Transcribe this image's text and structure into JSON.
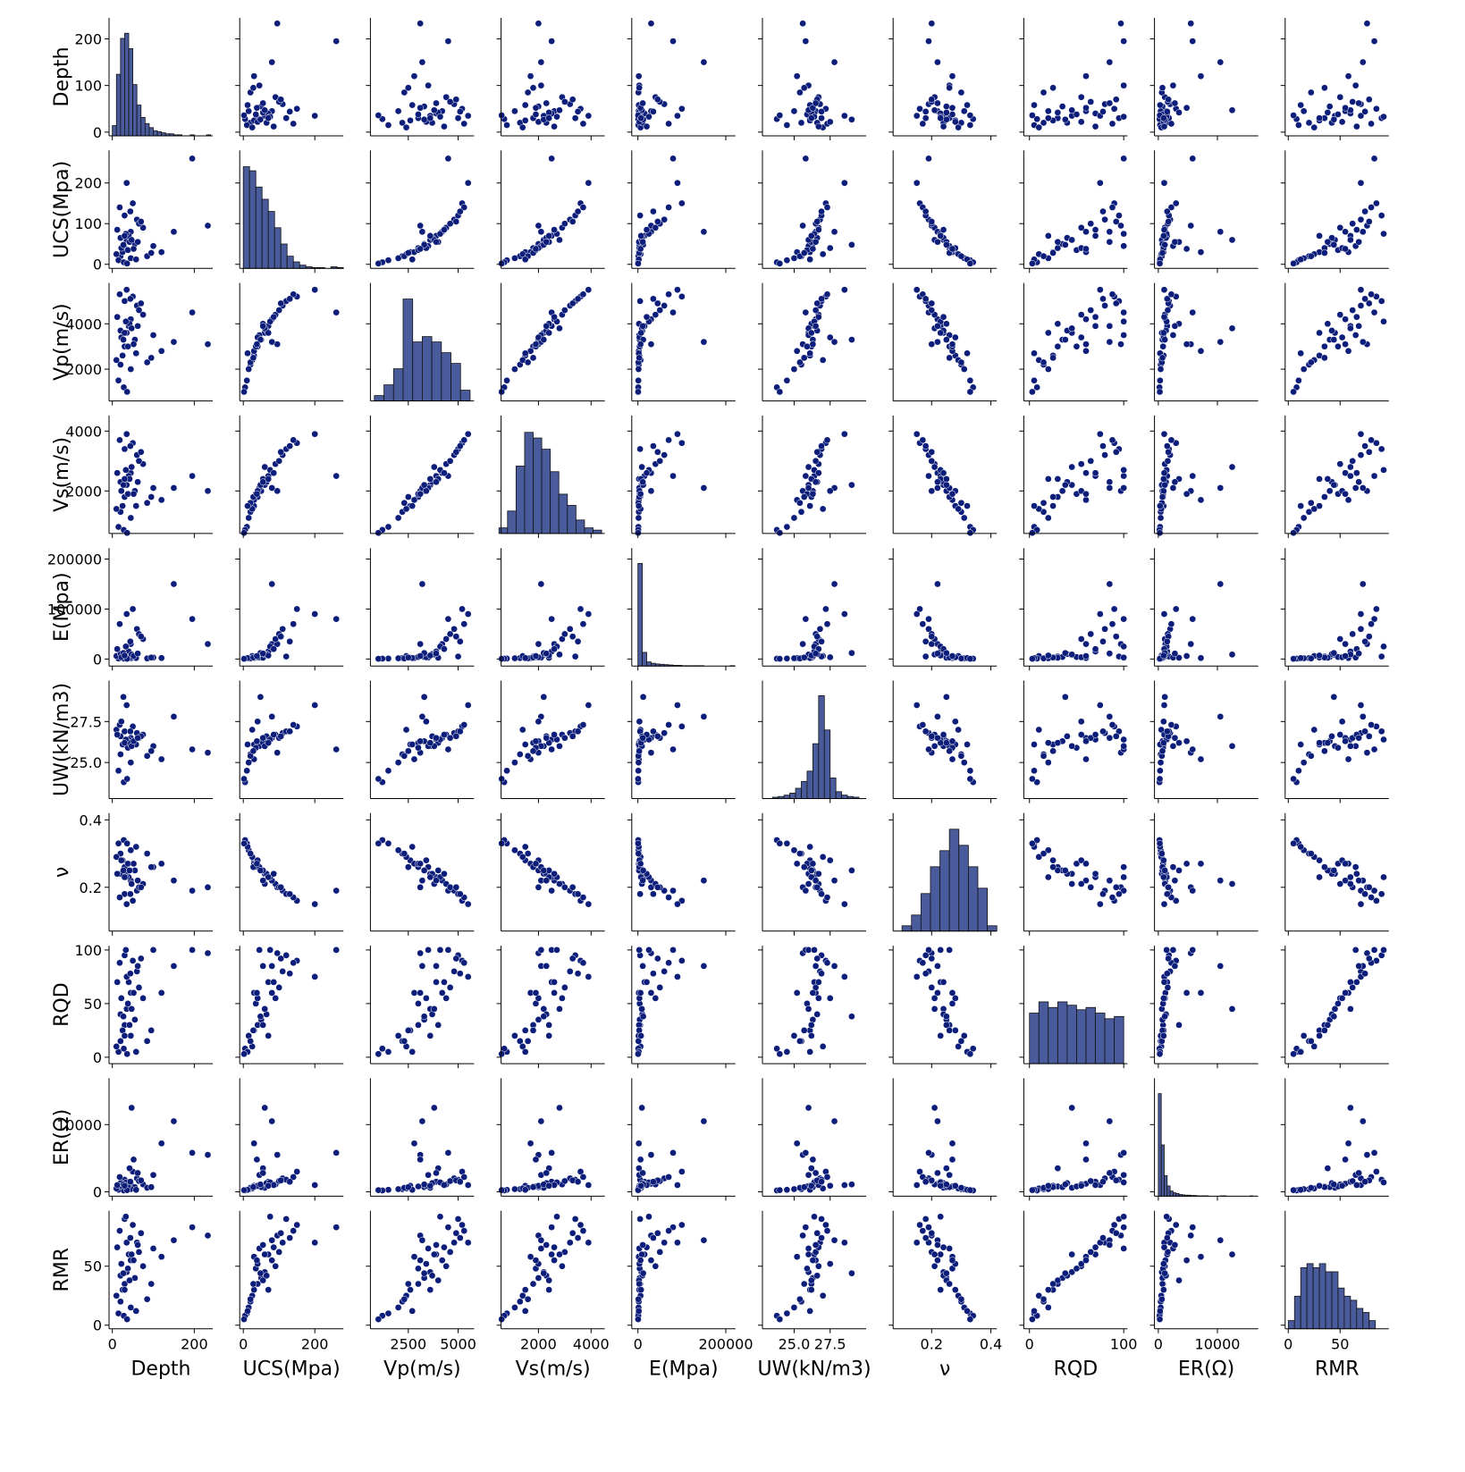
{
  "chart_data": {
    "type": "pairplot",
    "color": "#0d1d7a",
    "hist_color": "#4a5b9c",
    "variables": [
      {
        "name": "Depth",
        "lim": [
          -8,
          245
        ],
        "xticks": [
          0,
          200
        ],
        "yticks": [
          0,
          100,
          200
        ],
        "hist": {
          "bins": [
            0,
            10,
            20,
            30,
            40,
            50,
            60,
            70,
            80,
            90,
            100,
            110,
            120,
            130,
            140,
            150,
            160,
            170,
            180,
            190,
            200,
            210,
            220,
            230,
            240
          ],
          "counts": [
            10,
            60,
            95,
            100,
            85,
            50,
            30,
            18,
            12,
            8,
            5,
            4,
            3,
            2,
            2,
            1,
            1,
            0,
            0,
            1,
            0,
            0,
            0,
            1
          ],
          "ylim": [
            0,
            115
          ]
        }
      },
      {
        "name": "UCS(Mpa)",
        "lim": [
          -10,
          280
        ],
        "xticks": [
          0,
          200
        ],
        "yticks": [
          0,
          100,
          200
        ],
        "hist": {
          "bins": [
            0,
            17.5,
            35,
            52.5,
            70,
            87.5,
            105,
            122.5,
            140,
            157.5,
            175,
            192.5,
            210,
            227.5,
            245,
            262.5,
            280
          ],
          "counts": [
            125,
            120,
            100,
            85,
            70,
            50,
            30,
            15,
            8,
            4,
            2,
            1,
            1,
            0,
            2,
            1
          ],
          "ylim": [
            0,
            145
          ]
        }
      },
      {
        "name": "Vp(m/s)",
        "lim": [
          600,
          5800
        ],
        "xticks": [
          2500,
          5000
        ],
        "yticks": [
          2000,
          4000
        ],
        "hist": {
          "bins": [
            800,
            1280,
            1760,
            2240,
            2720,
            3200,
            3680,
            4160,
            4640,
            5120,
            5600
          ],
          "counts": [
            5,
            15,
            30,
            95,
            55,
            60,
            55,
            45,
            35,
            10
          ],
          "ylim": [
            0,
            110
          ]
        }
      },
      {
        "name": "Vs(m/s)",
        "lim": [
          580,
          4520
        ],
        "xticks": [
          2000,
          4000
        ],
        "yticks": [
          2000,
          4000
        ],
        "hist": {
          "bins": [
            500,
            825,
            1150,
            1475,
            1800,
            2125,
            2450,
            2775,
            3100,
            3425,
            3750,
            4075,
            4400
          ],
          "counts": [
            5,
            20,
            60,
            90,
            85,
            75,
            55,
            35,
            25,
            12,
            5,
            3
          ],
          "ylim": [
            0,
            105
          ]
        }
      },
      {
        "name": "E(Mpa)",
        "lim": [
          -14000,
          222000
        ],
        "xticks": [
          0,
          200000
        ],
        "yticks": [
          0,
          100000,
          200000
        ],
        "hist": {
          "bins": [
            0,
            10000,
            20000,
            30000,
            40000,
            50000,
            60000,
            70000,
            80000,
            90000,
            100000,
            110000,
            120000,
            130000,
            140000,
            150000,
            160000,
            170000,
            180000,
            190000,
            200000,
            210000,
            220000
          ],
          "counts": [
            300,
            40,
            12,
            8,
            6,
            5,
            4,
            3,
            2,
            2,
            1,
            1,
            1,
            1,
            1,
            0,
            0,
            0,
            0,
            0,
            0,
            1
          ],
          "ylim": [
            0,
            345
          ]
        }
      },
      {
        "name": "UW(kN/m3)",
        "lim": [
          22.8,
          30
        ],
        "xticks": [
          {
            "value": 25,
            "label": "25.0"
          },
          27.5
        ],
        "yticks": [
          {
            "value": 25,
            "label": "25.0"
          },
          27.5
        ],
        "hist": {
          "bins": [
            23.5,
            23.9,
            24.3,
            24.7,
            25.1,
            25.5,
            25.9,
            26.3,
            26.7,
            27.1,
            27.5,
            27.9,
            28.3,
            28.7,
            29.1,
            29.5
          ],
          "counts": [
            2,
            3,
            5,
            8,
            15,
            25,
            40,
            80,
            150,
            100,
            30,
            10,
            5,
            3,
            2
          ],
          "ylim": [
            0,
            172
          ]
        }
      },
      {
        "name": "ν",
        "lim": [
          0.07,
          0.42
        ],
        "xticks": [
          0.2,
          0.4
        ],
        "yticks": [
          0.2,
          0.4
        ],
        "hist": {
          "bins": [
            0.1,
            0.132,
            0.164,
            0.196,
            0.228,
            0.26,
            0.292,
            0.324,
            0.356,
            0.388,
            0.42
          ],
          "counts": [
            5,
            15,
            35,
            60,
            75,
            95,
            80,
            60,
            40,
            5
          ],
          "ylim": [
            0,
            110
          ]
        }
      },
      {
        "name": "RQD",
        "lim": [
          -6,
          104
        ],
        "xticks": [
          0,
          100
        ],
        "yticks": [
          0,
          50,
          100
        ],
        "hist": {
          "bins": [
            0,
            10,
            20,
            30,
            40,
            50,
            60,
            70,
            80,
            90,
            100
          ],
          "counts": [
            45,
            55,
            50,
            55,
            52,
            48,
            50,
            45,
            40,
            42
          ],
          "ylim": [
            0,
            105
          ]
        }
      },
      {
        "name": "ER(Ω)",
        "lim": [
          -650,
          16900
        ],
        "xticks": [
          0,
          10000
        ],
        "yticks": [
          0,
          10000
        ],
        "hist": {
          "bins": [
            0,
            500,
            1000,
            1500,
            2000,
            2500,
            3000,
            3500,
            4000,
            4500,
            5000,
            5500,
            6000,
            6500,
            7000,
            7500,
            8000,
            8500,
            9000,
            9500,
            10000,
            10500,
            11000,
            11500,
            12000,
            12500,
            13000,
            13500,
            14000,
            14500,
            15000,
            15500,
            16000
          ],
          "counts": [
            300,
            150,
            60,
            30,
            15,
            10,
            8,
            5,
            4,
            3,
            3,
            2,
            2,
            1,
            1,
            1,
            1,
            0,
            0,
            0,
            0,
            1,
            1,
            0,
            0,
            0,
            0,
            0,
            0,
            0,
            0,
            1
          ],
          "ylim": [
            0,
            345
          ]
        }
      },
      {
        "name": "RMR",
        "lim": [
          -3,
          97
        ],
        "xticks": [
          0,
          50
        ],
        "yticks": [
          0,
          50
        ],
        "hist": {
          "bins": [
            0,
            6,
            12,
            18,
            24,
            30,
            36,
            42,
            48,
            54,
            60,
            66,
            72,
            78,
            84
          ],
          "counts": [
            10,
            40,
            75,
            80,
            75,
            80,
            70,
            70,
            50,
            40,
            35,
            25,
            20,
            10
          ],
          "ylim": [
            0,
            145
          ]
        }
      }
    ],
    "samples": [
      [
        30,
        40,
        3000,
        1800,
        5000,
        26.2,
        0.26,
        30,
        800,
        35
      ],
      [
        45,
        80,
        4200,
        2600,
        30000,
        26.5,
        0.22,
        60,
        1200,
        55
      ],
      [
        20,
        20,
        2200,
        1300,
        2000,
        25.5,
        0.3,
        15,
        400,
        20
      ],
      [
        60,
        110,
        4800,
        3200,
        60000,
        26.8,
        0.19,
        80,
        2000,
        70
      ],
      [
        35,
        60,
        3600,
        2200,
        8000,
        26.0,
        0.24,
        45,
        600,
        45
      ],
      [
        233,
        95,
        3100,
        2000,
        30000,
        25.6,
        0.2,
        97,
        5500,
        76
      ],
      [
        195,
        260,
        4500,
        2500,
        80000,
        25.8,
        0.19,
        100,
        5800,
        83
      ],
      [
        15,
        10,
        1500,
        800,
        1000,
        24.5,
        0.33,
        5,
        300,
        10
      ],
      [
        50,
        150,
        5200,
        3600,
        100000,
        27.2,
        0.16,
        90,
        3000,
        85
      ],
      [
        25,
        30,
        2600,
        1500,
        3000,
        26.1,
        0.28,
        25,
        900,
        30
      ],
      [
        40,
        70,
        3900,
        2500,
        15000,
        26.4,
        0.23,
        70,
        1500,
        60
      ],
      [
        55,
        50,
        3300,
        2000,
        4000,
        26.3,
        0.25,
        35,
        700,
        40
      ],
      [
        120,
        30,
        2800,
        1700,
        2000,
        25.2,
        0.27,
        60,
        7200,
        58
      ],
      [
        10,
        25,
        2400,
        1400,
        6000,
        27.0,
        0.29,
        10,
        500,
        25
      ],
      [
        75,
        90,
        4400,
        2900,
        40000,
        26.7,
        0.21,
        55,
        1100,
        50
      ],
      [
        30,
        120,
        5000,
        3400,
        5000,
        26.9,
        0.18,
        95,
        1800,
        90
      ],
      [
        45,
        15,
        2000,
        1100,
        1500,
        25.0,
        0.31,
        20,
        400,
        15
      ],
      [
        100,
        45,
        3500,
        2100,
        3000,
        26.0,
        0.26,
        100,
        2500,
        65
      ],
      [
        35,
        200,
        5500,
        3900,
        90000,
        28.5,
        0.15,
        75,
        1000,
        70
      ],
      [
        20,
        65,
        3700,
        2300,
        10000,
        26.6,
        0.24,
        40,
        1300,
        42
      ],
      [
        150,
        80,
        3200,
        2100,
        150000,
        27.8,
        0.22,
        85,
        10500,
        72
      ],
      [
        28,
        5,
        1200,
        700,
        800,
        23.8,
        0.34,
        8,
        200,
        8
      ],
      [
        65,
        100,
        4600,
        3000,
        50000,
        26.5,
        0.2,
        65,
        1600,
        62
      ],
      [
        38,
        35,
        3000,
        1900,
        4000,
        25.9,
        0.27,
        50,
        800,
        48
      ],
      [
        42,
        55,
        4000,
        2400,
        2500,
        26.2,
        0.25,
        30,
        3500,
        38
      ],
      [
        18,
        140,
        5300,
        3700,
        70000,
        27.3,
        0.17,
        88,
        2200,
        80
      ],
      [
        85,
        20,
        2300,
        1600,
        1200,
        25.4,
        0.3,
        15,
        600,
        22
      ],
      [
        33,
        75,
        4100,
        2700,
        25000,
        26.4,
        0.23,
        100,
        1400,
        92
      ],
      [
        22,
        40,
        3400,
        2000,
        3500,
        27.5,
        0.28,
        55,
        900,
        52
      ],
      [
        58,
        12,
        2700,
        1500,
        2000,
        26.1,
        0.32,
        5,
        300,
        12
      ],
      [
        47,
        60,
        3800,
        2800,
        9000,
        26.0,
        0.21,
        45,
        12500,
        60
      ],
      [
        12,
        85,
        4300,
        2600,
        20000,
        26.7,
        0.24,
        70,
        1000,
        66
      ],
      [
        95,
        28,
        2500,
        1800,
        3000,
        25.7,
        0.26,
        25,
        700,
        35
      ],
      [
        27,
        48,
        3300,
        2200,
        12000,
        29.0,
        0.25,
        38,
        1100,
        44
      ],
      [
        70,
        105,
        4900,
        3300,
        45000,
        26.6,
        0.2,
        92,
        1700,
        78
      ],
      [
        36,
        2,
        1000,
        600,
        500,
        24.0,
        0.33,
        3,
        250,
        5
      ],
      [
        52,
        38,
        3100,
        1900,
        6000,
        26.3,
        0.27,
        60,
        4800,
        55
      ],
      [
        44,
        130,
        5100,
        3500,
        35000,
        26.9,
        0.18,
        78,
        1500,
        74
      ],
      [
        30,
        70,
        3600,
        2400,
        7000,
        26.2,
        0.23,
        20,
        900,
        30
      ],
      [
        62,
        55,
        3900,
        2300,
        11000,
        26.5,
        0.22,
        85,
        2800,
        68
      ]
    ]
  }
}
